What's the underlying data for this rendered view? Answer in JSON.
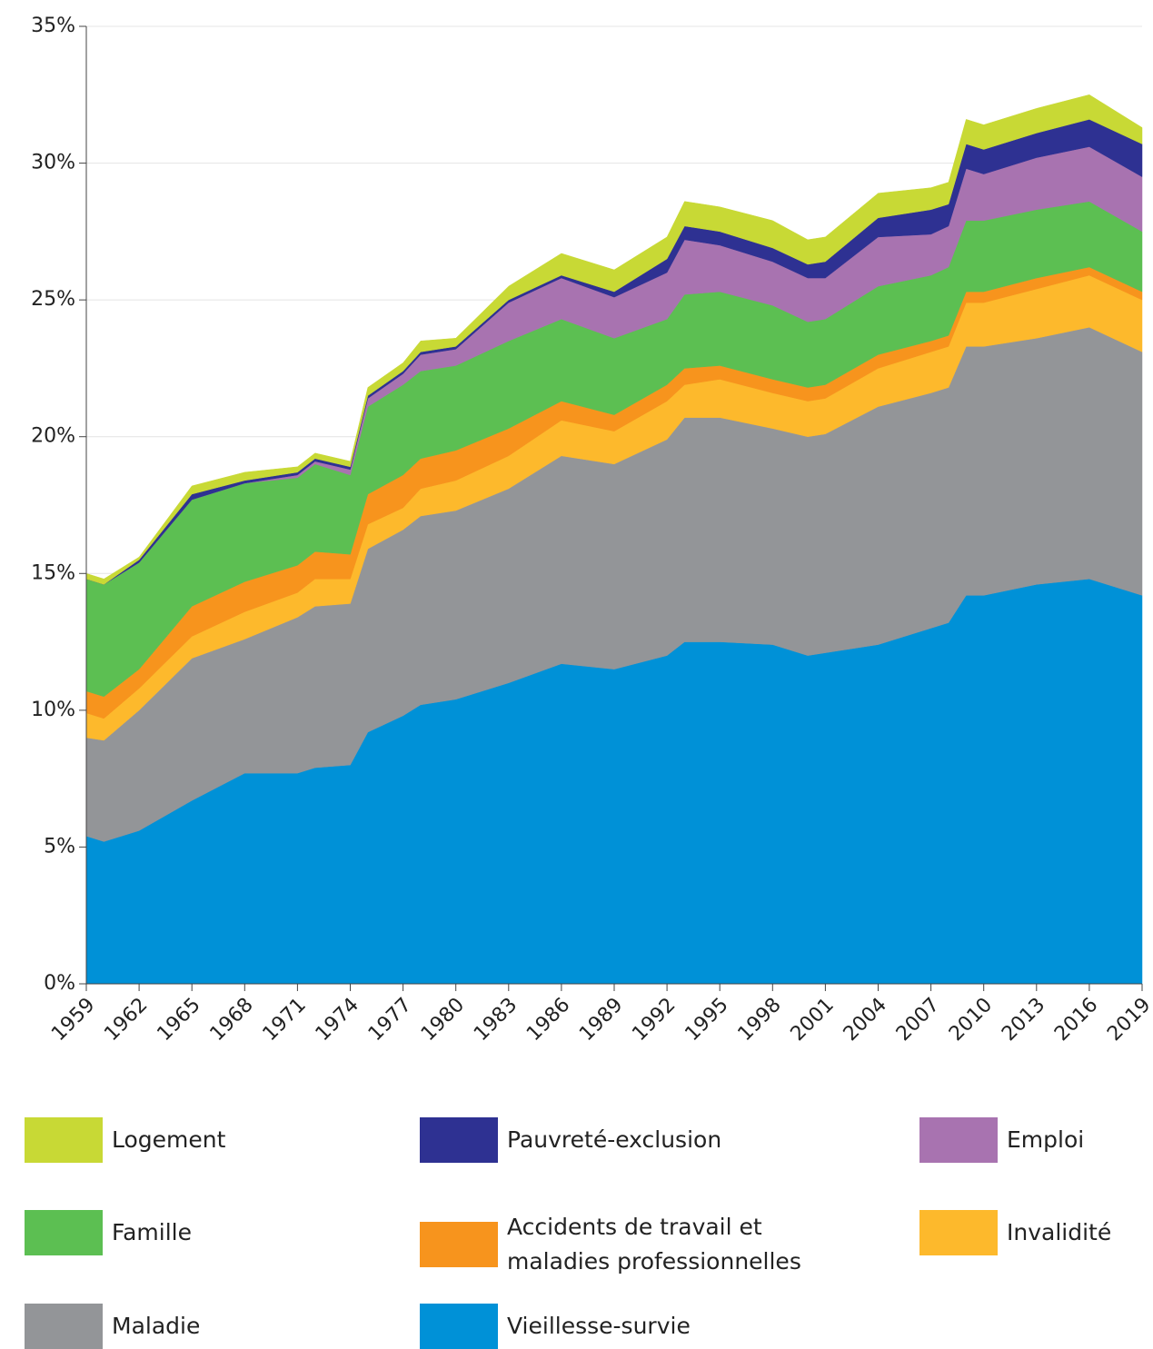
{
  "chart_data": {
    "type": "stacked_area",
    "x": [
      1959,
      1960,
      1962,
      1965,
      1968,
      1971,
      1972,
      1974,
      1975,
      1977,
      1978,
      1980,
      1983,
      1986,
      1989,
      1992,
      1993,
      1995,
      1998,
      2000,
      2001,
      2004,
      2007,
      2008,
      2009,
      2010,
      2013,
      2016,
      2019
    ],
    "xlim": [
      1959,
      2019
    ],
    "xticks": [
      1959,
      1962,
      1965,
      1968,
      1971,
      1974,
      1977,
      1980,
      1983,
      1986,
      1989,
      1992,
      1995,
      1998,
      2001,
      2004,
      2007,
      2010,
      2013,
      2016,
      2019
    ],
    "ylim": [
      0,
      35
    ],
    "yticks": [
      {
        "value": 0,
        "label": "0%"
      },
      {
        "value": 5,
        "label": "5%"
      },
      {
        "value": 10,
        "label": "10%"
      },
      {
        "value": 15,
        "label": "15%"
      },
      {
        "value": 20,
        "label": "20%"
      },
      {
        "value": 25,
        "label": "25%"
      },
      {
        "value": 30,
        "label": "30%"
      },
      {
        "value": 35,
        "label": "35%"
      }
    ],
    "grid": true,
    "series": [
      {
        "name": "Vieillesse-survie",
        "color": "#0091d7",
        "values": [
          5.4,
          5.2,
          5.6,
          6.7,
          7.7,
          7.7,
          7.9,
          8.0,
          9.2,
          9.8,
          10.2,
          10.4,
          11.0,
          11.7,
          11.5,
          12.0,
          12.5,
          12.5,
          12.4,
          12.0,
          12.1,
          12.4,
          13.0,
          13.2,
          14.2,
          14.2,
          14.6,
          14.8,
          14.2
        ]
      },
      {
        "name": "Maladie",
        "color": "#939598",
        "values": [
          3.6,
          3.7,
          4.4,
          5.2,
          4.9,
          5.7,
          5.9,
          5.9,
          6.7,
          6.8,
          6.9,
          6.9,
          7.1,
          7.6,
          7.5,
          7.9,
          8.2,
          8.2,
          7.9,
          8.0,
          8.0,
          8.7,
          8.6,
          8.6,
          9.1,
          9.1,
          9.0,
          9.2,
          8.9
        ]
      },
      {
        "name": "Invalidité",
        "color": "#fdb92c",
        "values": [
          0.9,
          0.8,
          0.8,
          0.8,
          1.0,
          0.9,
          1.0,
          0.9,
          0.9,
          0.8,
          1.0,
          1.1,
          1.2,
          1.3,
          1.2,
          1.4,
          1.2,
          1.4,
          1.3,
          1.3,
          1.3,
          1.4,
          1.5,
          1.5,
          1.6,
          1.6,
          1.8,
          1.9,
          1.9
        ]
      },
      {
        "name": "Accidents de travail et maladies professionnelles",
        "color": "#f7941d",
        "values": [
          0.8,
          0.8,
          0.7,
          1.1,
          1.1,
          1.0,
          1.0,
          0.9,
          1.1,
          1.2,
          1.1,
          1.1,
          1.0,
          0.7,
          0.6,
          0.6,
          0.6,
          0.5,
          0.5,
          0.5,
          0.5,
          0.5,
          0.4,
          0.4,
          0.4,
          0.4,
          0.4,
          0.3,
          0.3
        ]
      },
      {
        "name": "Famille",
        "color": "#5cbf52",
        "values": [
          4.1,
          4.1,
          3.9,
          3.9,
          3.6,
          3.2,
          3.2,
          2.9,
          3.2,
          3.3,
          3.2,
          3.1,
          3.2,
          3.0,
          2.8,
          2.4,
          2.7,
          2.7,
          2.7,
          2.4,
          2.4,
          2.5,
          2.4,
          2.5,
          2.6,
          2.6,
          2.5,
          2.4,
          2.2
        ]
      },
      {
        "name": "Emploi",
        "color": "#a873b0",
        "values": [
          0,
          0,
          0,
          0,
          0,
          0.1,
          0.1,
          0.2,
          0.3,
          0.4,
          0.6,
          0.6,
          1.4,
          1.5,
          1.5,
          1.7,
          2.0,
          1.7,
          1.6,
          1.6,
          1.5,
          1.8,
          1.5,
          1.5,
          1.9,
          1.7,
          1.9,
          2.0,
          2.0
        ]
      },
      {
        "name": "Pauvreté-exclusion",
        "color": "#2e3192",
        "values": [
          0,
          0,
          0.1,
          0.2,
          0.1,
          0.1,
          0.1,
          0.1,
          0.1,
          0.1,
          0.1,
          0.1,
          0.1,
          0.1,
          0.2,
          0.5,
          0.5,
          0.5,
          0.5,
          0.5,
          0.6,
          0.7,
          0.9,
          0.8,
          0.9,
          0.9,
          0.9,
          1.0,
          1.2
        ]
      },
      {
        "name": "Logement",
        "color": "#c8d935",
        "values": [
          0.2,
          0.2,
          0.1,
          0.3,
          0.3,
          0.2,
          0.2,
          0.2,
          0.3,
          0.3,
          0.4,
          0.3,
          0.5,
          0.8,
          0.8,
          0.8,
          0.9,
          0.9,
          1.0,
          0.9,
          0.9,
          0.9,
          0.8,
          0.8,
          0.9,
          0.9,
          0.9,
          0.9,
          0.6
        ]
      }
    ]
  }
}
